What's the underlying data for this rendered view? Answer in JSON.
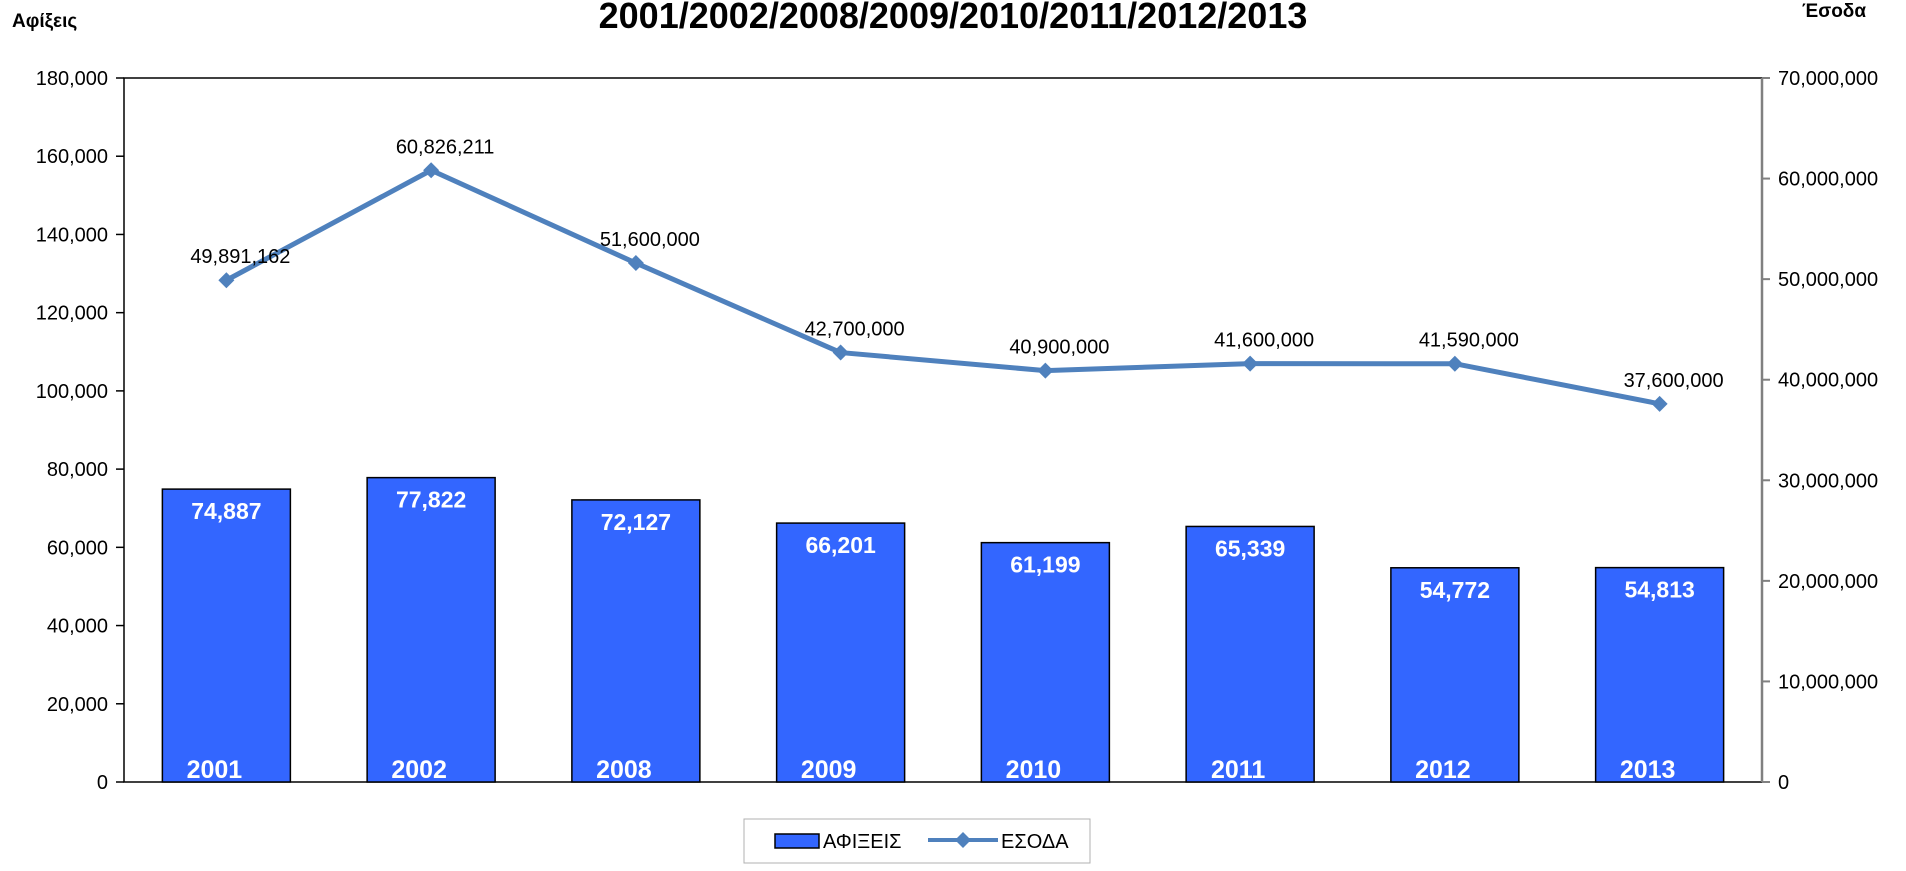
{
  "chart_data": {
    "type": "bar+line",
    "title": "2001/2002/2008/2009/2010/2011/2012/2013",
    "ylabel_left": "Αφίξεις",
    "ylabel_right": "Έσοδα",
    "categories": [
      "2001",
      "2002",
      "2008",
      "2009",
      "2010",
      "2011",
      "2012",
      "2013"
    ],
    "ylim_left": [
      0,
      180000
    ],
    "ylim_right": [
      0,
      70000000
    ],
    "left_ticks": [
      "0",
      "20,000",
      "40,000",
      "60,000",
      "80,000",
      "100,000",
      "120,000",
      "140,000",
      "160,000",
      "180,000"
    ],
    "right_ticks": [
      "0",
      "10,000,000",
      "20,000,000",
      "30,000,000",
      "40,000,000",
      "50,000,000",
      "60,000,000",
      "70,000,000"
    ],
    "grid": false,
    "legend_position": "bottom-center",
    "series": [
      {
        "name": "ΑΦΙΞΕΙΣ",
        "type": "bar",
        "axis": "left",
        "color": "#3366FF",
        "values": [
          74887,
          77822,
          72127,
          66201,
          61199,
          65339,
          54772,
          54813
        ],
        "labels": [
          "74,887",
          "77,822",
          "72,127",
          "66,201",
          "61,199",
          "65,339",
          "54,772",
          "54,813"
        ]
      },
      {
        "name": "ΕΣΟΔΑ",
        "type": "line",
        "axis": "right",
        "color": "#4F81BD",
        "marker": "diamond",
        "values": [
          49891162,
          60826211,
          51600000,
          42700000,
          40900000,
          41600000,
          41590000,
          37600000
        ],
        "labels": [
          "49,891,162",
          "60,826,211",
          "51,600,000",
          "42,700,000",
          "40,900,000",
          "41,600,000",
          "41,590,000",
          "37,600,000"
        ]
      }
    ]
  }
}
